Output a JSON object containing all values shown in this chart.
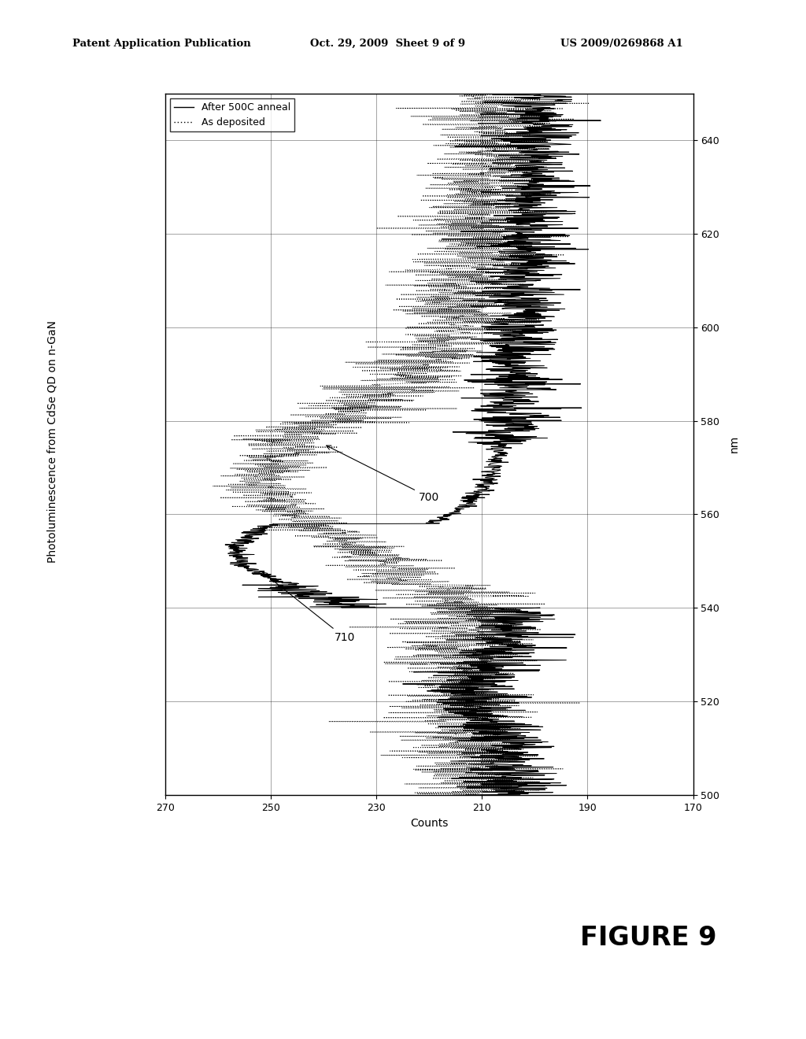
{
  "title": "Photoluminescence from CdSe QD on n-GaN",
  "xlabel_bottom": "Counts",
  "ylabel_right": "nm",
  "counts_lim": [
    270,
    170
  ],
  "nm_lim": [
    500,
    650
  ],
  "counts_ticks": [
    270,
    250,
    230,
    210,
    190,
    170
  ],
  "nm_ticks": [
    500,
    520,
    540,
    560,
    580,
    600,
    620,
    640
  ],
  "legend_labels": [
    "After 500C anneal",
    "As deposited"
  ],
  "ann1_label": "710",
  "ann2_label": "700",
  "header_left": "Patent Application Publication",
  "header_center": "Oct. 29, 2009  Sheet 9 of 9",
  "header_right": "US 2009/0269868 A1",
  "figure_label": "FIGURE 9",
  "bg_color": "#ffffff"
}
